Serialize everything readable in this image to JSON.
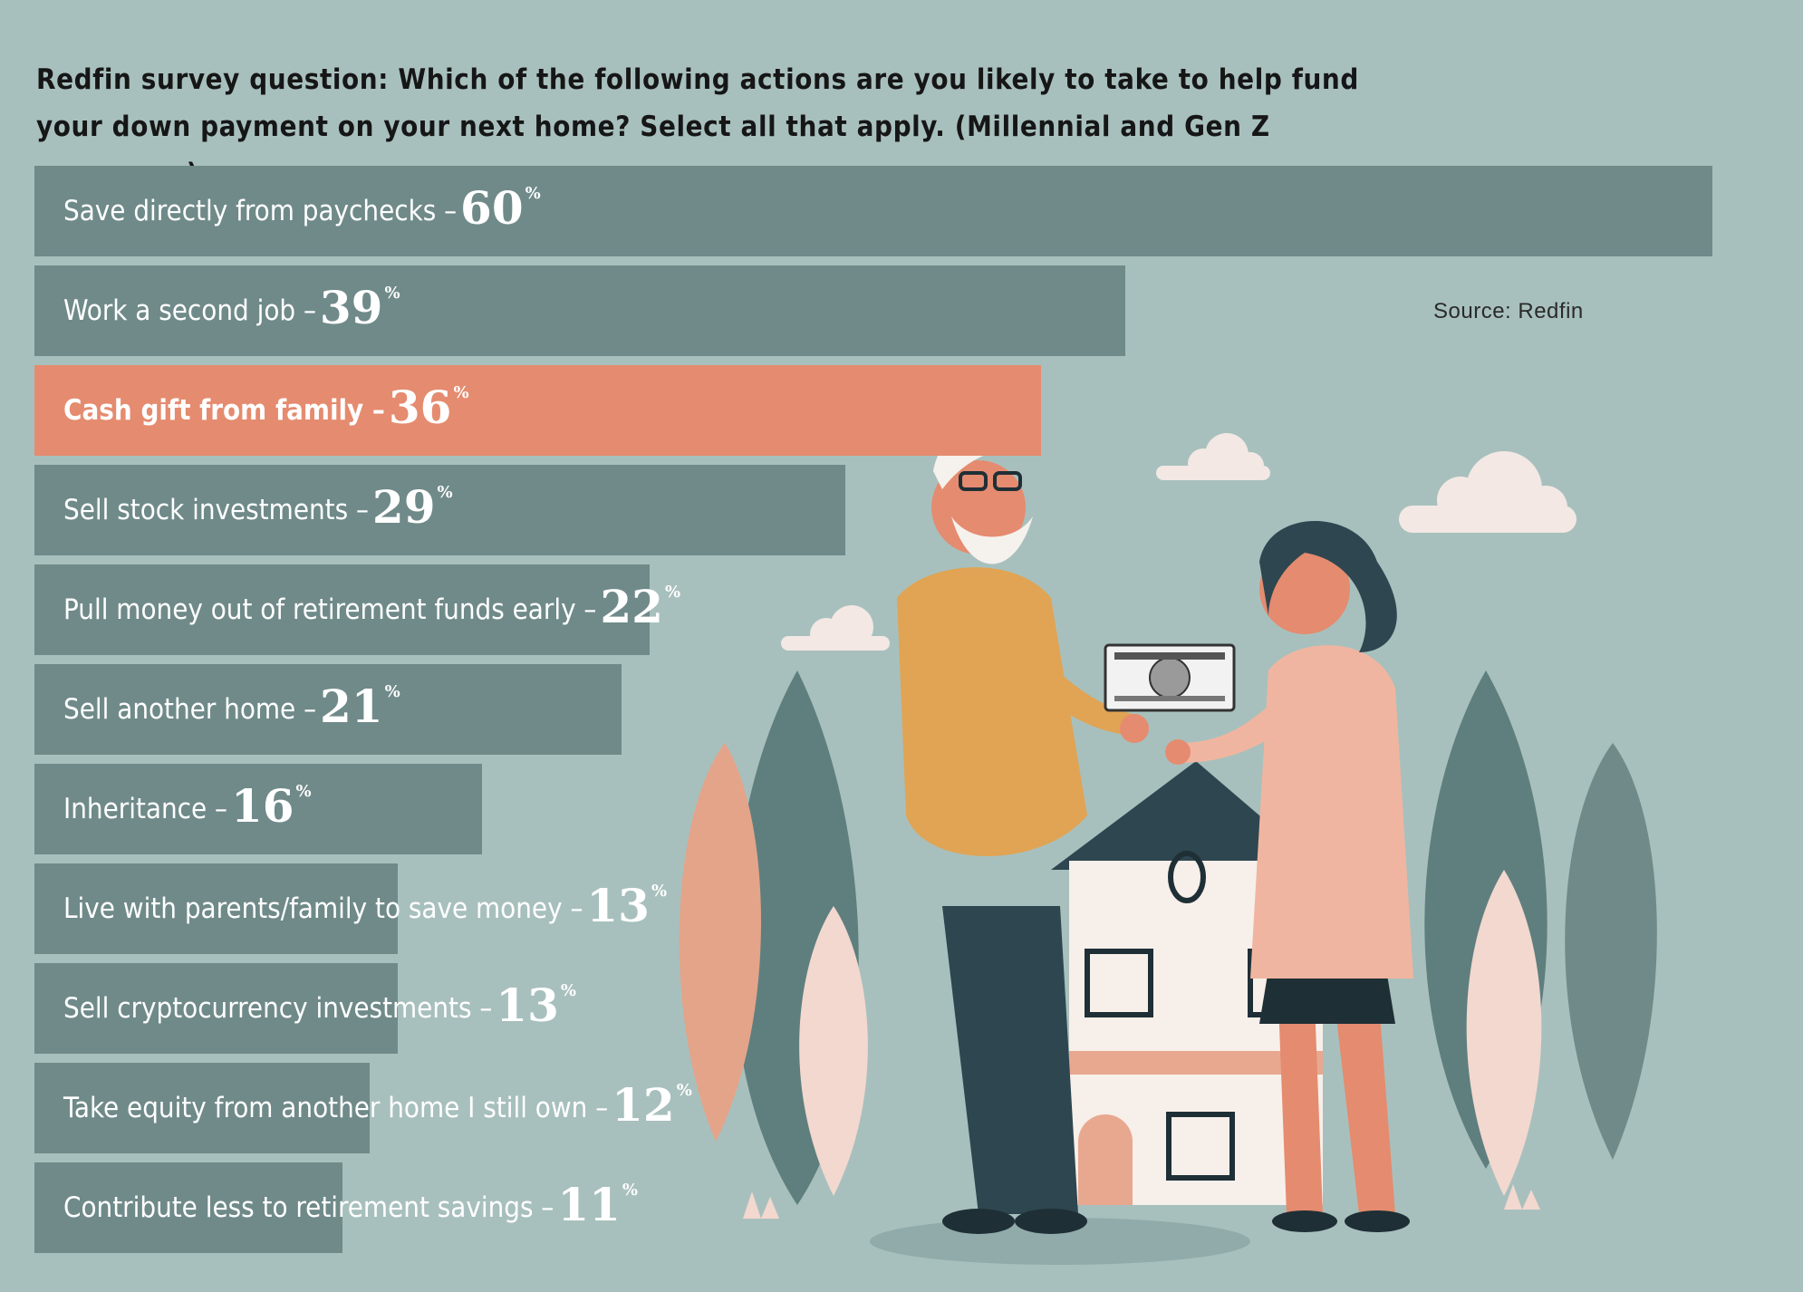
{
  "title": "Redfin survey question: Which of the following actions are you likely to take to help fund your down payment on your next home? Select all that apply. (Millennial and Gen Z responses)",
  "source": "Source: Redfin",
  "colors": {
    "bar": "#6f8a89",
    "highlight": "#e58b6f",
    "background": "#a8c0bd"
  },
  "chart_data": {
    "type": "bar",
    "orientation": "horizontal",
    "unit": "%",
    "categories": [
      "Save directly from paychecks",
      "Work a second job",
      "Cash gift from family",
      "Sell stock investments",
      "Pull money out of retirement funds early",
      "Sell another home",
      "Inheritance",
      "Live with parents/family to save money",
      "Sell cryptocurrency investments",
      "Take equity from another home I still own",
      "Contribute less to retirement savings"
    ],
    "values": [
      60,
      39,
      36,
      29,
      22,
      21,
      16,
      13,
      13,
      12,
      11
    ],
    "highlight_index": 2,
    "xlim": [
      0,
      60
    ],
    "grid": false,
    "legend": "none"
  }
}
